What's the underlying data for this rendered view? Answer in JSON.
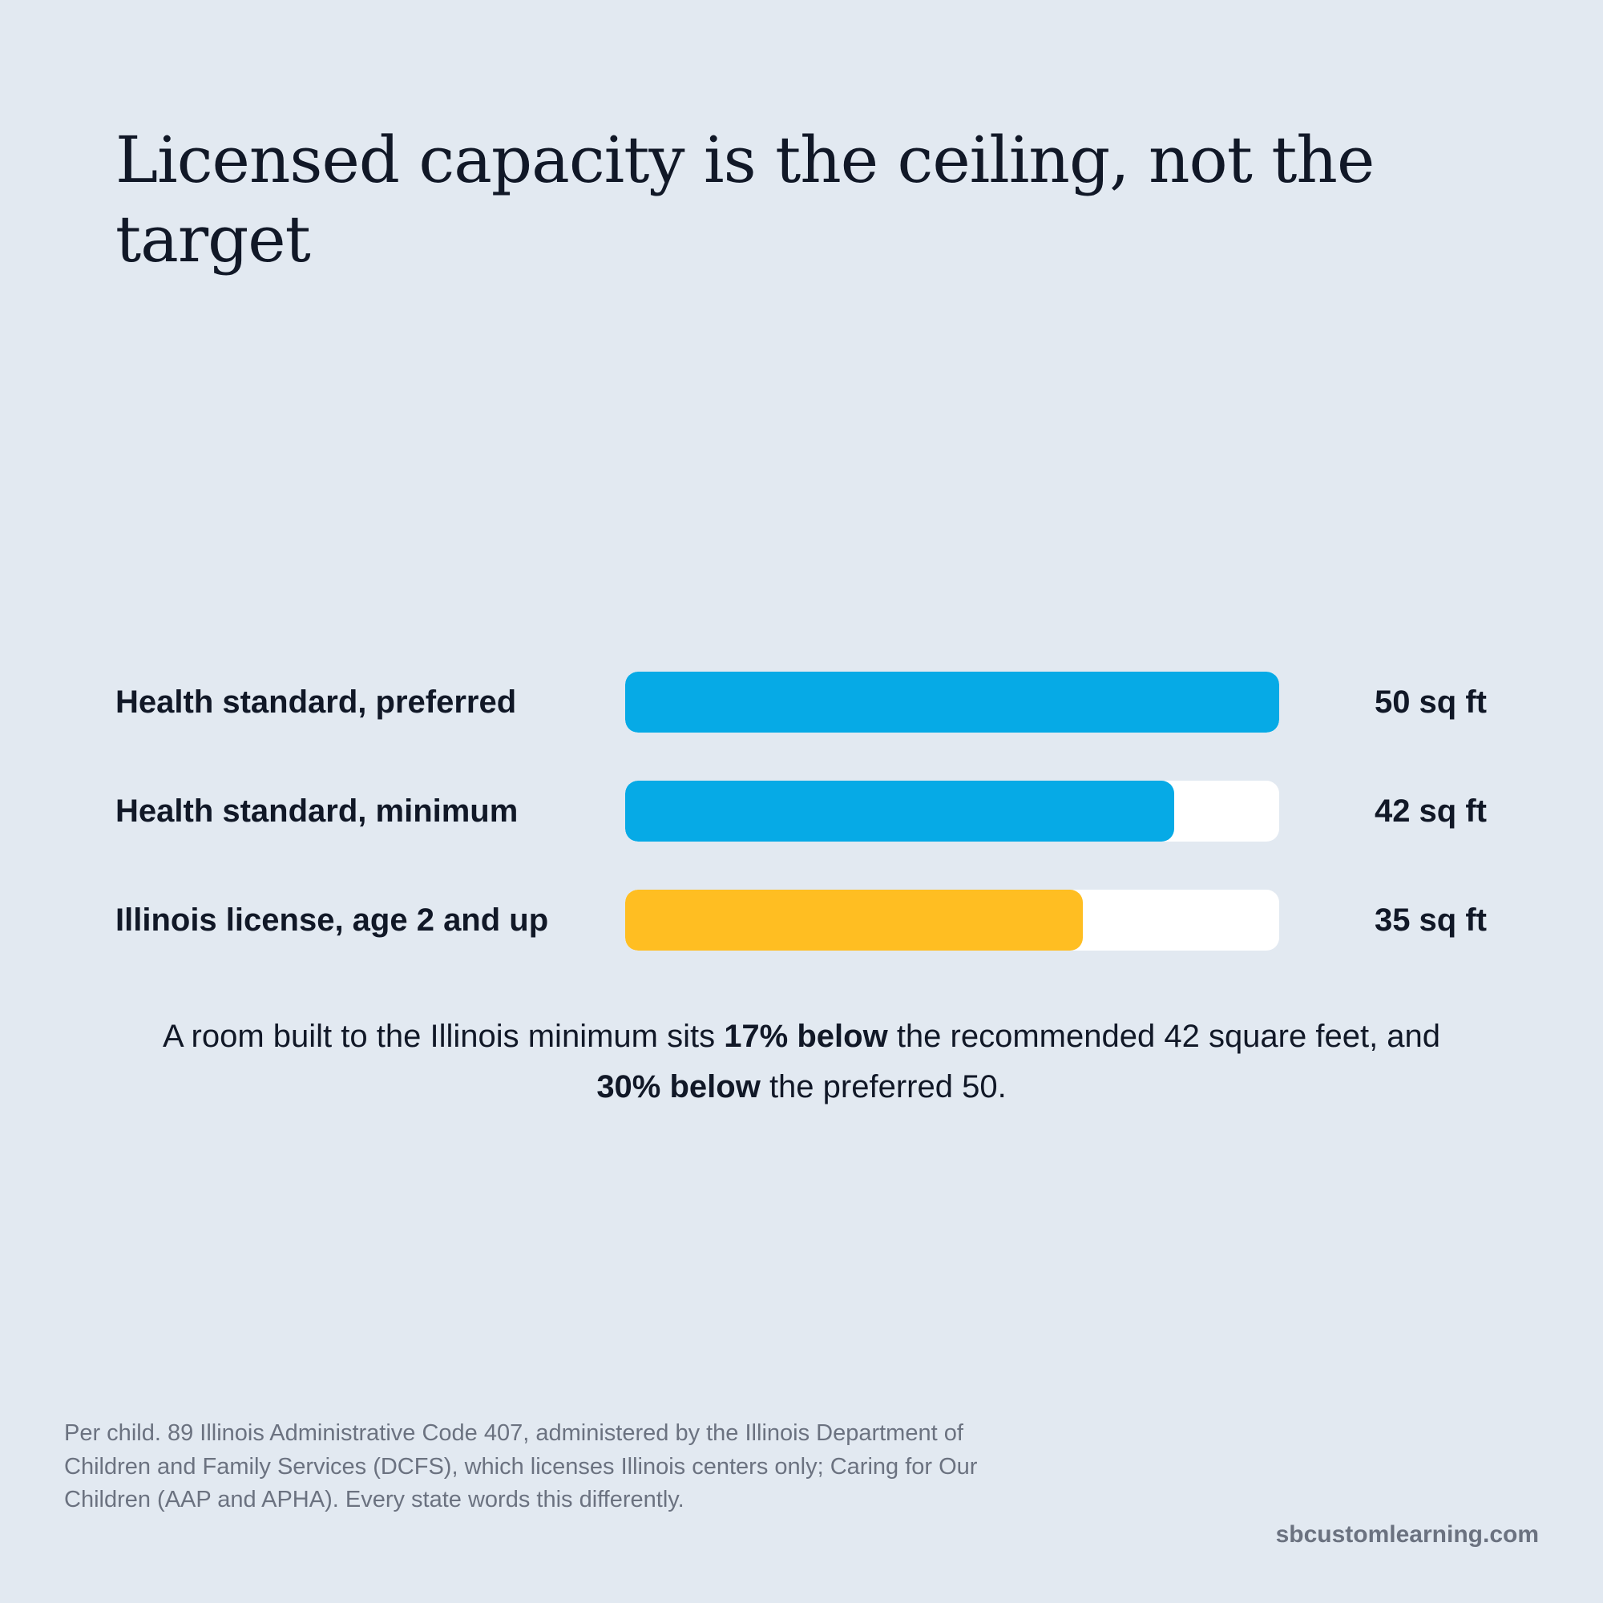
{
  "title": "Licensed capacity is the ceiling, not the target",
  "chart_data": {
    "type": "bar",
    "orientation": "horizontal",
    "xlim": [
      0,
      50
    ],
    "categories": [
      "Health standard, preferred",
      "Health standard, minimum",
      "Illinois license, age 2 and up"
    ],
    "values": [
      50,
      42,
      35
    ],
    "value_labels": [
      "50 sq ft",
      "42 sq ft",
      "35 sq ft"
    ],
    "unit": "sq ft",
    "colors": [
      "#06aae6",
      "#06aae6",
      "#ffbe22"
    ],
    "track_color": "#ffffff"
  },
  "note": {
    "part1": "A room built to the Illinois minimum sits ",
    "bold1": "17% below",
    "part2": " the recommended 42 square feet, and ",
    "bold2": "30% below",
    "part3": " the preferred 50."
  },
  "footnote": "Per child. 89 Illinois Administrative Code 407, administered by the Illinois Department of Children and Family Services (DCFS), which licenses Illinois centers only; Caring for Our Children (AAP and APHA). Every state words this differently.",
  "site": "sbcustomlearning.com"
}
